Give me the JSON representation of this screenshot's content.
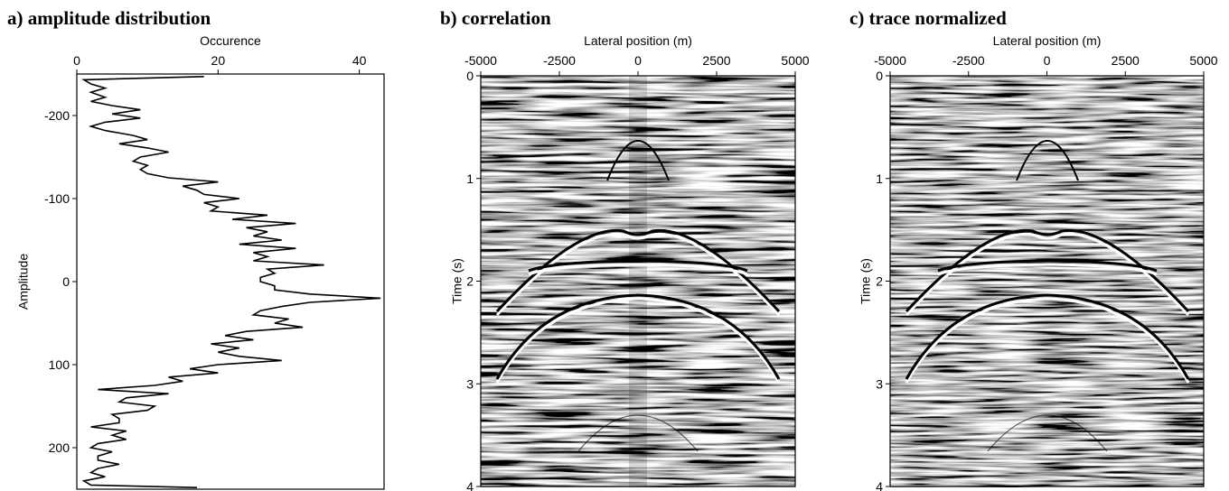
{
  "chart_data": [
    {
      "type": "line",
      "title": "a) amplitude distribution",
      "xlabel": "Occurence",
      "ylabel": "Amplitude",
      "xlim": [
        0,
        43.5
      ],
      "xticks": [
        0,
        20,
        40
      ],
      "ylim": [
        -250,
        250
      ],
      "y_reversed": true,
      "yticks": [
        -200,
        -100,
        0,
        100,
        200
      ],
      "color": "#000000",
      "x": [
        18,
        1,
        2,
        4,
        2,
        4,
        2,
        5,
        9,
        5,
        9,
        4,
        2,
        4,
        8,
        10,
        6,
        10,
        13,
        9,
        8,
        10,
        9,
        10,
        13,
        20,
        15,
        17,
        18,
        23,
        18,
        20,
        19,
        27,
        22,
        31,
        24,
        27,
        25,
        29,
        23,
        31,
        25,
        27,
        25,
        35,
        27,
        28,
        26,
        26,
        28,
        28,
        33,
        43,
        33,
        29,
        26,
        25,
        30,
        28,
        32,
        24,
        21,
        25,
        19,
        23,
        20,
        23,
        29,
        20,
        16,
        20,
        13,
        15,
        11,
        3,
        13,
        7,
        6,
        11,
        10,
        5,
        6,
        6,
        2,
        7,
        5,
        7,
        3,
        2,
        5,
        3,
        3,
        6,
        3,
        2,
        4,
        1,
        2,
        17
      ],
      "values": [
        -247,
        -243,
        -238,
        -233,
        -228,
        -222,
        -217,
        -212,
        -207,
        -202,
        -197,
        -192,
        -187,
        -182,
        -176,
        -171,
        -166,
        -161,
        -156,
        -150,
        -145,
        -140,
        -135,
        -130,
        -125,
        -120,
        -115,
        -110,
        -105,
        -100,
        -95,
        -90,
        -85,
        -80,
        -75,
        -70,
        -65,
        -60,
        -55,
        -50,
        -45,
        -40,
        -35,
        -30,
        -25,
        -20,
        -15,
        -10,
        -5,
        0,
        5,
        10,
        15,
        20,
        25,
        30,
        35,
        40,
        45,
        50,
        55,
        60,
        65,
        70,
        75,
        80,
        85,
        90,
        95,
        100,
        105,
        110,
        115,
        120,
        125,
        130,
        135,
        140,
        145,
        150,
        155,
        160,
        165,
        170,
        175,
        180,
        185,
        190,
        195,
        200,
        205,
        210,
        215,
        220,
        225,
        230,
        235,
        240,
        245,
        248
      ]
    },
    {
      "type": "seismic",
      "title": "b) correlation",
      "xlabel": "Lateral position (m)",
      "ylabel": "Time (s)",
      "xlim": [
        -5000,
        5000
      ],
      "xticks": [
        -5000,
        -2500,
        0,
        2500,
        5000
      ],
      "ylim": [
        0,
        4
      ],
      "y_reversed": true,
      "yticks": [
        0,
        1,
        2,
        3,
        4
      ]
    },
    {
      "type": "seismic",
      "title": "c) trace normalized",
      "xlabel": "Lateral position (m)",
      "ylabel": "Time (s)",
      "xlim": [
        -5000,
        5000
      ],
      "xticks": [
        -5000,
        -2500,
        0,
        2500,
        5000
      ],
      "ylim": [
        0,
        4
      ],
      "y_reversed": true,
      "yticks": [
        0,
        1,
        2,
        3,
        4
      ]
    }
  ]
}
